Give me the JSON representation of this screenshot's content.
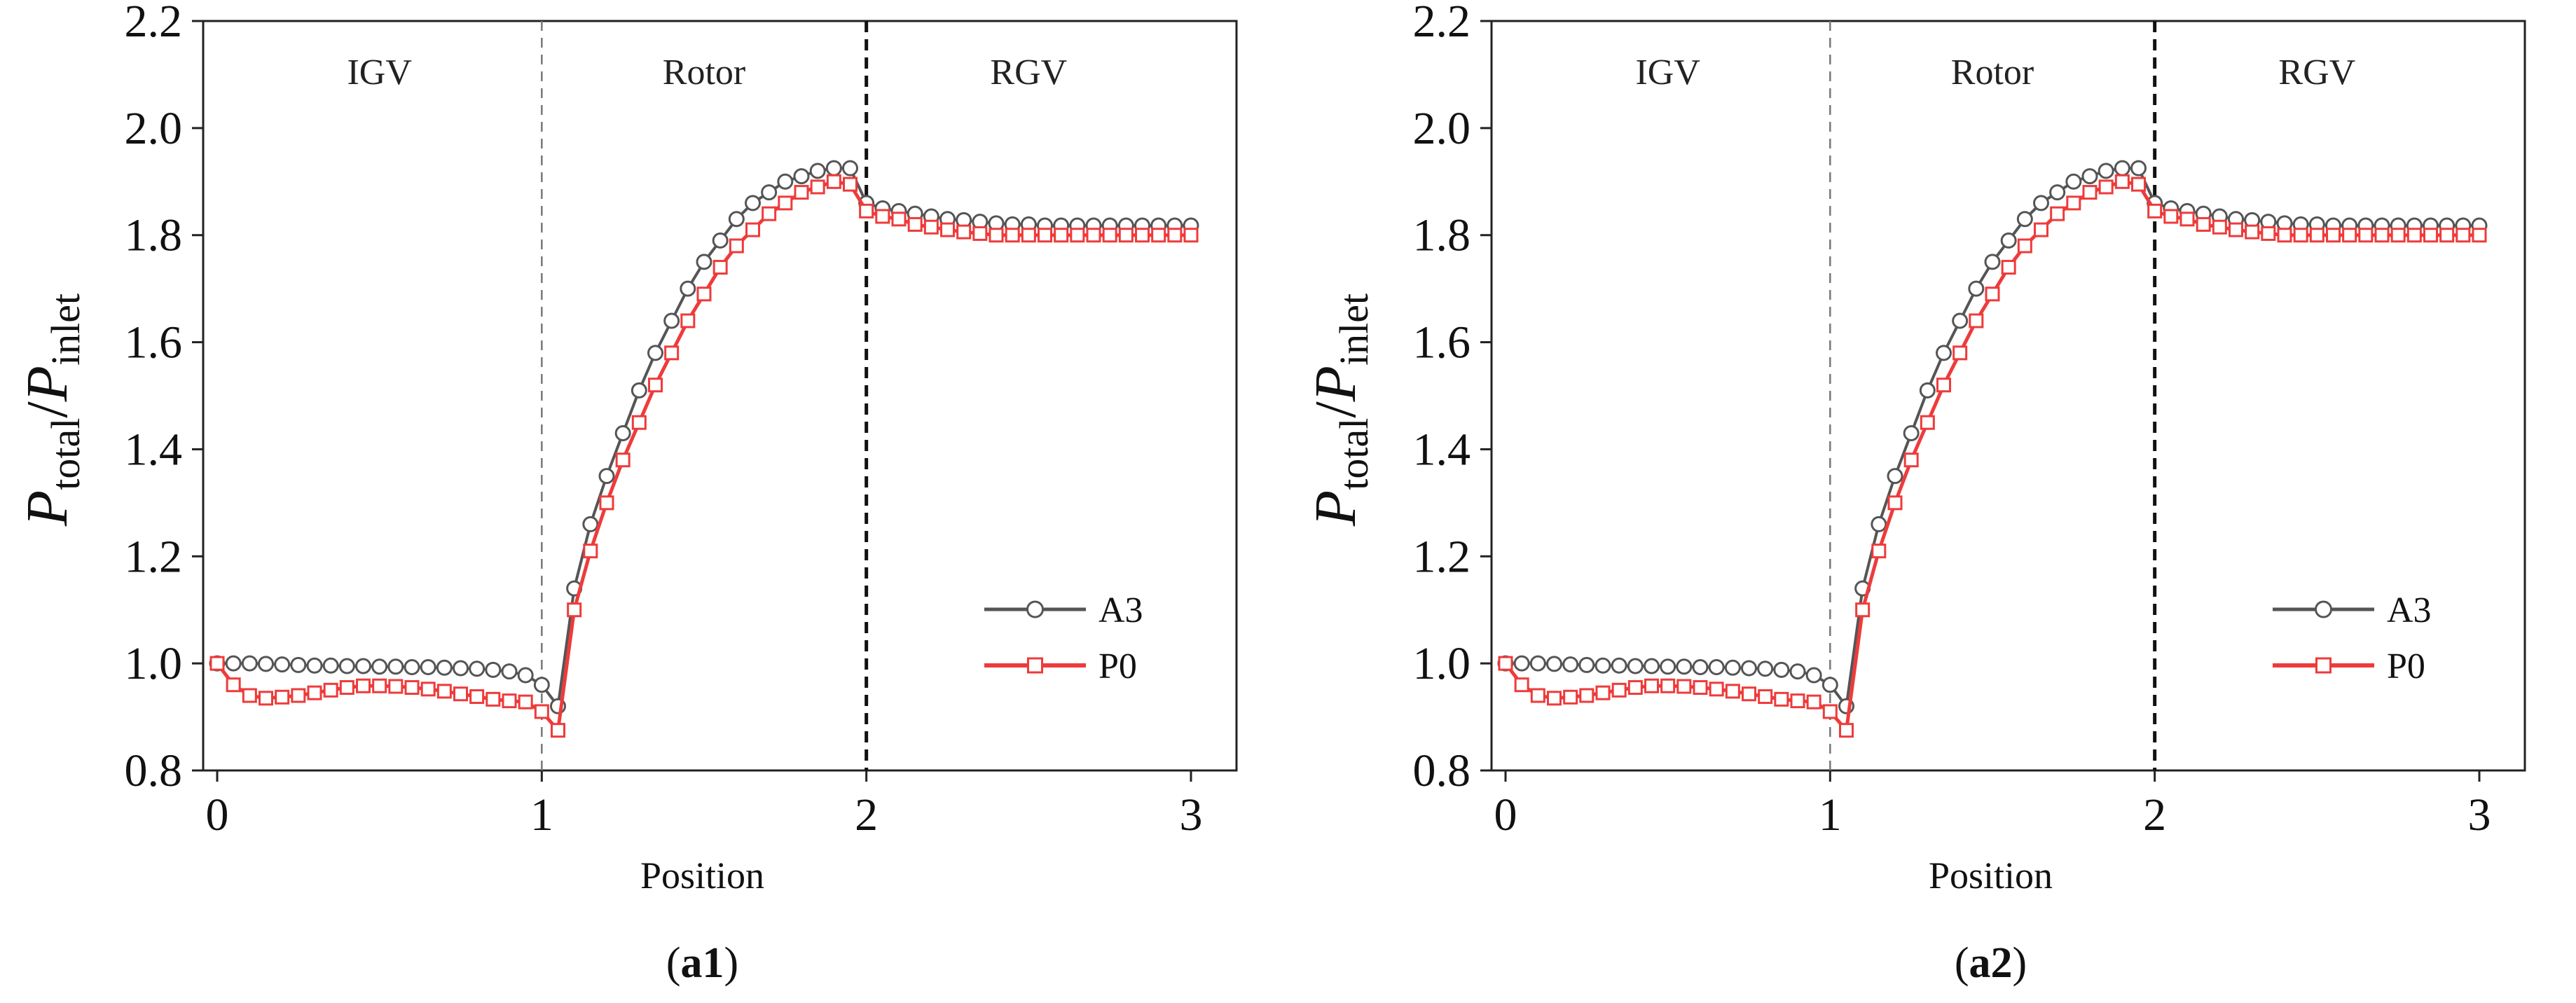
{
  "chart_data": [
    {
      "type": "line",
      "panel_label": "(a1)",
      "xlabel": "Position",
      "ylabel": "P_total/P_inlet",
      "ylabel_parts": {
        "main1": "P",
        "sub1": "total",
        "slash": "/",
        "main2": "P",
        "sub2": "inlet"
      },
      "xlim": [
        0,
        3
      ],
      "ylim": [
        0.8,
        2.2
      ],
      "x_ticks": [
        "0",
        "1",
        "2",
        "3"
      ],
      "y_ticks": [
        "0.8",
        "1.0",
        "1.2",
        "1.4",
        "1.6",
        "1.8",
        "2.0",
        "2.2"
      ],
      "regions": [
        {
          "label": "IGV",
          "center": 0.5
        },
        {
          "label": "Rotor",
          "center": 1.5
        },
        {
          "label": "RGV",
          "center": 2.5
        }
      ],
      "dividers": [
        {
          "x": 1,
          "style": "thin-dashed"
        },
        {
          "x": 2,
          "style": "thick-dashed"
        }
      ],
      "legend": {
        "placement": "bottom-right",
        "entries": [
          "A3",
          "P0"
        ]
      },
      "series": [
        {
          "name": "A3",
          "color": "#555555",
          "marker": "circle",
          "x": [
            0,
            0.05,
            0.1,
            0.15,
            0.2,
            0.25,
            0.3,
            0.35,
            0.4,
            0.45,
            0.5,
            0.55,
            0.6,
            0.65,
            0.7,
            0.75,
            0.8,
            0.85,
            0.9,
            0.95,
            1.0,
            1.05,
            1.1,
            1.15,
            1.2,
            1.25,
            1.3,
            1.35,
            1.4,
            1.45,
            1.5,
            1.55,
            1.6,
            1.65,
            1.7,
            1.75,
            1.8,
            1.85,
            1.9,
            1.95,
            2.0,
            2.05,
            2.1,
            2.15,
            2.2,
            2.25,
            2.3,
            2.35,
            2.4,
            2.45,
            2.5,
            2.55,
            2.6,
            2.65,
            2.7,
            2.75,
            2.8,
            2.85,
            2.9,
            2.95,
            3.0
          ],
          "y": [
            1.0,
            1.0,
            1.0,
            0.999,
            0.998,
            0.997,
            0.996,
            0.996,
            0.995,
            0.995,
            0.994,
            0.994,
            0.993,
            0.993,
            0.992,
            0.991,
            0.99,
            0.988,
            0.985,
            0.978,
            0.96,
            0.92,
            1.14,
            1.26,
            1.35,
            1.43,
            1.51,
            1.58,
            1.64,
            1.7,
            1.75,
            1.79,
            1.83,
            1.86,
            1.88,
            1.9,
            1.91,
            1.92,
            1.925,
            1.925,
            1.86,
            1.85,
            1.845,
            1.84,
            1.835,
            1.83,
            1.828,
            1.825,
            1.822,
            1.82,
            1.82,
            1.818,
            1.818,
            1.818,
            1.818,
            1.818,
            1.818,
            1.818,
            1.818,
            1.818,
            1.818
          ]
        },
        {
          "name": "P0",
          "color": "#ee3b3b",
          "marker": "square",
          "x": [
            0,
            0.05,
            0.1,
            0.15,
            0.2,
            0.25,
            0.3,
            0.35,
            0.4,
            0.45,
            0.5,
            0.55,
            0.6,
            0.65,
            0.7,
            0.75,
            0.8,
            0.85,
            0.9,
            0.95,
            1.0,
            1.05,
            1.1,
            1.15,
            1.2,
            1.25,
            1.3,
            1.35,
            1.4,
            1.45,
            1.5,
            1.55,
            1.6,
            1.65,
            1.7,
            1.75,
            1.8,
            1.85,
            1.9,
            1.95,
            2.0,
            2.05,
            2.1,
            2.15,
            2.2,
            2.25,
            2.3,
            2.35,
            2.4,
            2.45,
            2.5,
            2.55,
            2.6,
            2.65,
            2.7,
            2.75,
            2.8,
            2.85,
            2.9,
            2.95,
            3.0
          ],
          "y": [
            1.0,
            0.96,
            0.94,
            0.935,
            0.937,
            0.94,
            0.945,
            0.95,
            0.955,
            0.958,
            0.958,
            0.957,
            0.955,
            0.952,
            0.948,
            0.943,
            0.938,
            0.933,
            0.93,
            0.928,
            0.91,
            0.875,
            1.1,
            1.21,
            1.3,
            1.38,
            1.45,
            1.52,
            1.58,
            1.64,
            1.69,
            1.74,
            1.78,
            1.81,
            1.84,
            1.86,
            1.88,
            1.89,
            1.9,
            1.895,
            1.845,
            1.835,
            1.83,
            1.82,
            1.815,
            1.81,
            1.806,
            1.803,
            1.8,
            1.8,
            1.8,
            1.8,
            1.8,
            1.8,
            1.8,
            1.8,
            1.8,
            1.8,
            1.8,
            1.8,
            1.8
          ]
        }
      ]
    },
    {
      "type": "line",
      "panel_label": "(a2)",
      "xlabel": "Position",
      "ylabel": "P_total/P_inlet",
      "ylabel_parts": {
        "main1": "P",
        "sub1": "total",
        "slash": "/",
        "main2": "P",
        "sub2": "inlet"
      },
      "xlim": [
        0,
        3
      ],
      "ylim": [
        0.8,
        2.2
      ],
      "x_ticks": [
        "0",
        "1",
        "2",
        "3"
      ],
      "y_ticks": [
        "0.8",
        "1.0",
        "1.2",
        "1.4",
        "1.6",
        "1.8",
        "2.0",
        "2.2"
      ],
      "regions": [
        {
          "label": "IGV",
          "center": 0.5
        },
        {
          "label": "Rotor",
          "center": 1.5
        },
        {
          "label": "RGV",
          "center": 2.5
        }
      ],
      "dividers": [
        {
          "x": 1,
          "style": "thin-dashed"
        },
        {
          "x": 2,
          "style": "thick-dashed"
        }
      ],
      "legend": {
        "placement": "bottom-right",
        "entries": [
          "A3",
          "P0"
        ]
      },
      "series": [
        {
          "name": "A3",
          "color": "#555555",
          "marker": "circle",
          "x": [
            0,
            0.05,
            0.1,
            0.15,
            0.2,
            0.25,
            0.3,
            0.35,
            0.4,
            0.45,
            0.5,
            0.55,
            0.6,
            0.65,
            0.7,
            0.75,
            0.8,
            0.85,
            0.9,
            0.95,
            1.0,
            1.05,
            1.1,
            1.15,
            1.2,
            1.25,
            1.3,
            1.35,
            1.4,
            1.45,
            1.5,
            1.55,
            1.6,
            1.65,
            1.7,
            1.75,
            1.8,
            1.85,
            1.9,
            1.95,
            2.0,
            2.05,
            2.1,
            2.15,
            2.2,
            2.25,
            2.3,
            2.35,
            2.4,
            2.45,
            2.5,
            2.55,
            2.6,
            2.65,
            2.7,
            2.75,
            2.8,
            2.85,
            2.9,
            2.95,
            3.0
          ],
          "y": [
            1.0,
            1.0,
            1.0,
            0.999,
            0.998,
            0.997,
            0.996,
            0.996,
            0.995,
            0.995,
            0.994,
            0.994,
            0.993,
            0.993,
            0.992,
            0.991,
            0.99,
            0.988,
            0.985,
            0.978,
            0.96,
            0.92,
            1.14,
            1.26,
            1.35,
            1.43,
            1.51,
            1.58,
            1.64,
            1.7,
            1.75,
            1.79,
            1.83,
            1.86,
            1.88,
            1.9,
            1.91,
            1.92,
            1.925,
            1.925,
            1.86,
            1.85,
            1.845,
            1.84,
            1.835,
            1.83,
            1.828,
            1.825,
            1.822,
            1.82,
            1.82,
            1.818,
            1.818,
            1.818,
            1.818,
            1.818,
            1.818,
            1.818,
            1.818,
            1.818,
            1.818
          ]
        },
        {
          "name": "P0",
          "color": "#ee3b3b",
          "marker": "square",
          "x": [
            0,
            0.05,
            0.1,
            0.15,
            0.2,
            0.25,
            0.3,
            0.35,
            0.4,
            0.45,
            0.5,
            0.55,
            0.6,
            0.65,
            0.7,
            0.75,
            0.8,
            0.85,
            0.9,
            0.95,
            1.0,
            1.05,
            1.1,
            1.15,
            1.2,
            1.25,
            1.3,
            1.35,
            1.4,
            1.45,
            1.5,
            1.55,
            1.6,
            1.65,
            1.7,
            1.75,
            1.8,
            1.85,
            1.9,
            1.95,
            2.0,
            2.05,
            2.1,
            2.15,
            2.2,
            2.25,
            2.3,
            2.35,
            2.4,
            2.45,
            2.5,
            2.55,
            2.6,
            2.65,
            2.7,
            2.75,
            2.8,
            2.85,
            2.9,
            2.95,
            3.0
          ],
          "y": [
            1.0,
            0.96,
            0.94,
            0.935,
            0.937,
            0.94,
            0.945,
            0.95,
            0.955,
            0.958,
            0.958,
            0.957,
            0.955,
            0.952,
            0.948,
            0.943,
            0.938,
            0.933,
            0.93,
            0.928,
            0.91,
            0.875,
            1.1,
            1.21,
            1.3,
            1.38,
            1.45,
            1.52,
            1.58,
            1.64,
            1.69,
            1.74,
            1.78,
            1.81,
            1.84,
            1.86,
            1.88,
            1.89,
            1.9,
            1.895,
            1.845,
            1.835,
            1.83,
            1.82,
            1.815,
            1.81,
            1.806,
            1.803,
            1.8,
            1.8,
            1.8,
            1.8,
            1.8,
            1.8,
            1.8,
            1.8,
            1.8,
            1.8,
            1.8,
            1.8,
            1.8
          ]
        }
      ]
    }
  ]
}
